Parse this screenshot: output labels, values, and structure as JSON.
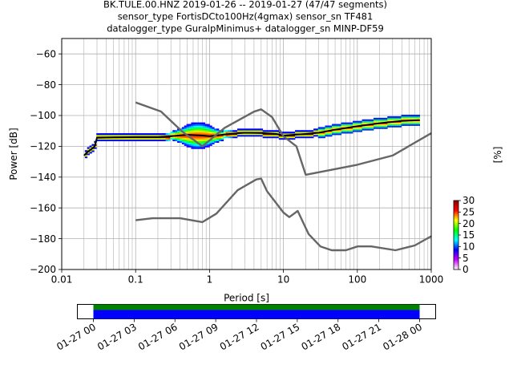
{
  "header": {
    "line1": "BK.TULE.00.HNZ   2019-01-26 -- 2019-01-27  (47/47 segments)",
    "line2": "sensor_type FortisDCto100Hz(4gmax) sensor_sn TF481",
    "line3": "datalogger_type GuralpMinimus+ datalogger_sn MINP-DF59"
  },
  "chart_data": [
    {
      "type": "heatmap",
      "title": "",
      "xlabel": "Period [s]",
      "ylabel": "Power [dB]",
      "xscale": "log",
      "xlim": [
        0.01,
        1000
      ],
      "ylim": [
        -200,
        -50
      ],
      "xticks": [
        {
          "value": 0.01,
          "label": "0.01"
        },
        {
          "value": 0.1,
          "label": "0.1"
        },
        {
          "value": 1,
          "label": "1"
        },
        {
          "value": 10,
          "label": "10"
        },
        {
          "value": 100,
          "label": "100"
        },
        {
          "value": 1000,
          "label": "1000"
        }
      ],
      "yticks": [
        -200,
        -180,
        -160,
        -140,
        -120,
        -100,
        -80,
        -60
      ],
      "grid": "on (major and minor vertical, major horizontal)",
      "colorbar": {
        "label": "[%]",
        "range": [
          0,
          30
        ],
        "ticks": [
          0,
          5,
          10,
          15,
          20,
          25,
          30
        ],
        "colors": [
          "#ffffff",
          "#cc00ff",
          "#0000ff",
          "#00ffff",
          "#00ff00",
          "#ffff00",
          "#ff0000",
          "#8b0000"
        ]
      },
      "series": [
        {
          "role": "mean",
          "color": "#000000",
          "x": [
            0.02,
            0.022,
            0.025,
            0.028,
            0.03,
            0.05,
            0.1,
            0.2,
            0.3,
            0.5,
            0.8,
            1.0,
            1.5,
            2,
            3,
            5,
            8,
            10,
            20,
            30,
            50,
            100,
            200,
            400,
            700
          ],
          "y": [
            -126,
            -124,
            -122,
            -120,
            -114.5,
            -114.2,
            -114,
            -114,
            -113.5,
            -112.5,
            -113,
            -113.5,
            -112.5,
            -111.8,
            -111.2,
            -111.4,
            -112,
            -113,
            -112,
            -111.2,
            -109.2,
            -107,
            -105,
            -103.5,
            -103
          ]
        },
        {
          "role": "model-upper",
          "color": "#666666",
          "x": [
            0.1,
            0.22,
            0.43,
            0.8,
            1.6,
            4,
            5,
            7,
            10,
            15,
            20,
            100,
            300,
            1000
          ],
          "y": [
            -91.5,
            -97.4,
            -110.5,
            -120,
            -108,
            -97.5,
            -96,
            -101,
            -113.5,
            -120,
            -138.5,
            -132,
            -126,
            -111.5
          ]
        },
        {
          "role": "model-lower",
          "color": "#666666",
          "x": [
            0.1,
            0.17,
            0.4,
            0.8,
            1.24,
            2.4,
            4.3,
            5,
            6,
            10,
            12,
            15.6,
            21.9,
            31.6,
            45,
            70,
            101,
            154,
            328,
            600,
            1000
          ],
          "y": [
            -168,
            -166.7,
            -166.7,
            -169.2,
            -163.7,
            -148.5,
            -141.5,
            -141,
            -149.1,
            -163,
            -166,
            -162,
            -177,
            -185,
            -187.5,
            -187.5,
            -185,
            -185,
            -187.5,
            -184.4,
            -178.4
          ]
        }
      ]
    },
    {
      "type": "timeline",
      "title": "",
      "xlabel": "",
      "ylabel": "",
      "xlim": [
        "01-26 22:45",
        "01-28 01:15"
      ],
      "tick_labels": [
        "01-27 00",
        "01-27 03",
        "01-27 06",
        "01-27 09",
        "01-27 12",
        "01-27 15",
        "01-27 18",
        "01-27 21",
        "01-28 00"
      ],
      "tick_hours": [
        0,
        3,
        6,
        9,
        12,
        15,
        18,
        21,
        24
      ],
      "coverage_hours": [
        0,
        24
      ],
      "bands": [
        {
          "role": "data",
          "color": "#008000"
        },
        {
          "role": "psd",
          "color": "#0000ff"
        }
      ]
    }
  ]
}
